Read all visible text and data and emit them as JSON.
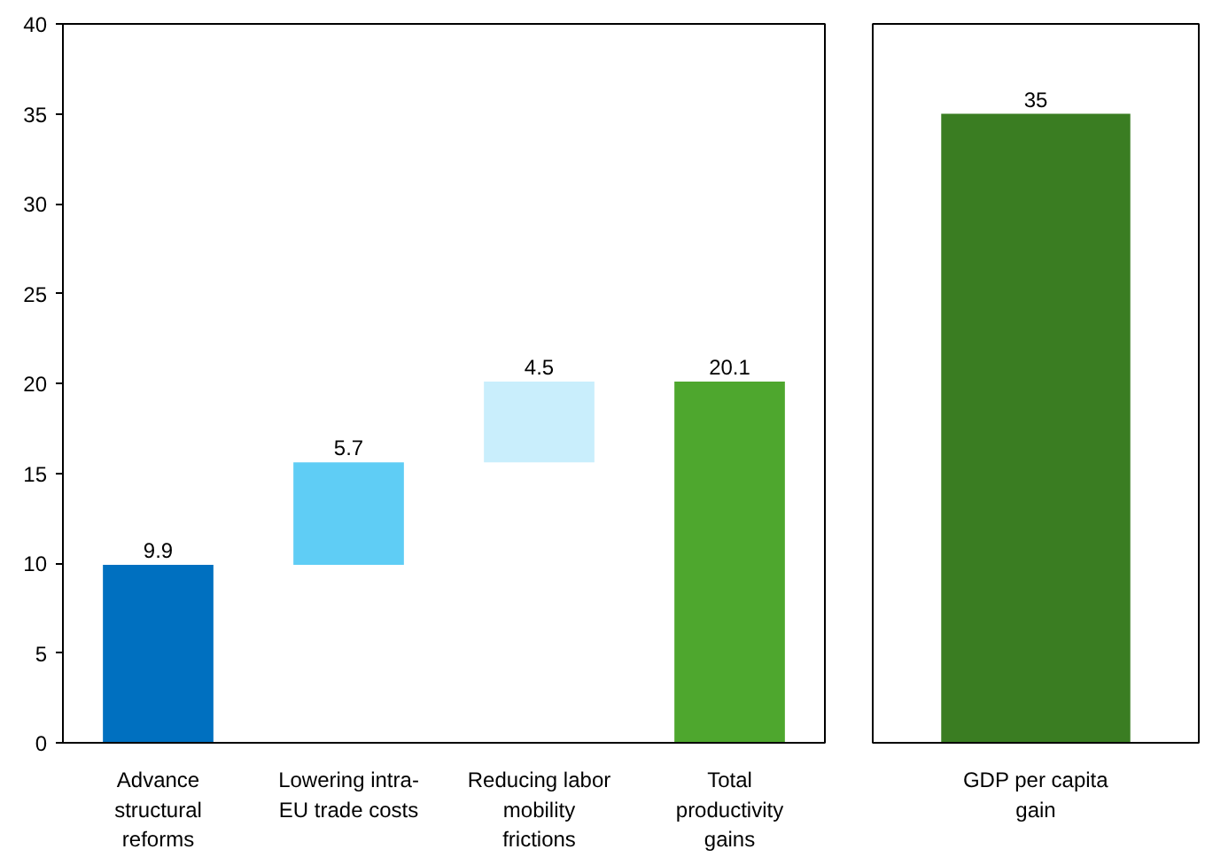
{
  "chart_data": [
    {
      "type": "bar",
      "categories": [
        "Advance structural reforms",
        "Lowering intra-EU trade costs",
        "Reducing labor mobility frictions",
        "Total productivity gains"
      ],
      "values": [
        9.9,
        5.7,
        4.5,
        20.1
      ],
      "base": [
        0,
        9.9,
        15.6,
        0
      ],
      "colors": [
        "#0070c0",
        "#5fcdf5",
        "#c9eefc",
        "#4ea72e"
      ],
      "ylim": [
        0,
        40
      ],
      "yticks": [
        0,
        5,
        10,
        15,
        20,
        25,
        30,
        35,
        40
      ],
      "data_labels": true,
      "grid": false
    },
    {
      "type": "bar",
      "categories": [
        "GDP per capita gain"
      ],
      "values": [
        35
      ],
      "colors": [
        "#3a7d22"
      ],
      "ylim": [
        0,
        40
      ],
      "yticks": [
        0,
        5,
        10,
        15,
        20,
        25,
        30,
        35,
        40
      ],
      "data_labels": true,
      "grid": false,
      "tick_labels": "x"
    }
  ]
}
